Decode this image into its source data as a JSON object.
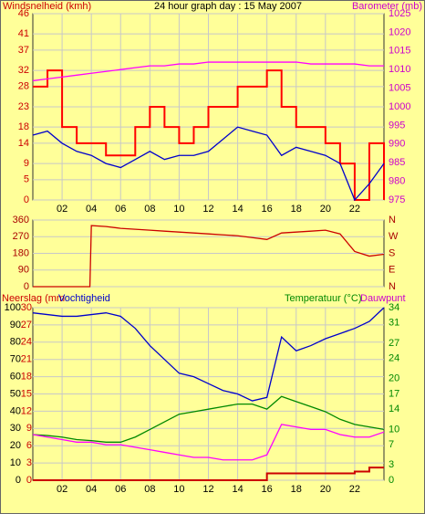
{
  "chart_data": [
    {
      "type": "line",
      "title": "24 hour graph day : 15 May 2007",
      "ylabel": "Windsnelheid (kmh)",
      "y2label": "Barometer (mb)",
      "ytick_color": "#cc0000",
      "y2tick_color": "#cc00cc",
      "x": [
        0,
        1,
        2,
        3,
        4,
        5,
        6,
        7,
        8,
        9,
        10,
        11,
        12,
        13,
        14,
        15,
        16,
        17,
        18,
        19,
        20,
        21,
        22,
        23,
        24
      ],
      "xlim": [
        0,
        24
      ],
      "xticks": [
        {
          "value": 2,
          "label": "02"
        },
        {
          "value": 4,
          "label": "04"
        },
        {
          "value": 6,
          "label": "06"
        },
        {
          "value": 8,
          "label": "08"
        },
        10,
        12,
        14,
        16,
        18,
        20,
        22
      ],
      "ylim": [
        0,
        46
      ],
      "yticks": [
        0,
        5,
        9,
        14,
        18,
        23,
        28,
        32,
        37,
        41,
        46
      ],
      "y2lim": [
        975,
        1025
      ],
      "y2ticks": [
        975,
        980,
        985,
        990,
        995,
        1000,
        1005,
        1010,
        1015,
        1020,
        1025
      ],
      "series": [
        {
          "color": "#ff0000",
          "step": true,
          "values": [
            28,
            32,
            18,
            14,
            14,
            11,
            11,
            18,
            23,
            18,
            14,
            18,
            23,
            23,
            28,
            28,
            32,
            23,
            18,
            18,
            14,
            9,
            0,
            14,
            0
          ]
        },
        {
          "color": "#0000cc",
          "values": [
            16,
            17,
            14,
            12,
            11,
            9,
            8,
            10,
            12,
            10,
            11,
            11,
            12,
            15,
            18,
            17,
            16,
            11,
            13,
            12,
            11,
            9,
            0,
            4,
            9
          ]
        },
        {
          "color": "#ff00ff",
          "axis": "y2",
          "values": [
            1007,
            1007.5,
            1008,
            1008.5,
            1009,
            1009.5,
            1010,
            1010.5,
            1011,
            1011,
            1011.5,
            1011.5,
            1012,
            1012,
            1012,
            1012,
            1012,
            1012,
            1012,
            1011.5,
            1011.5,
            1011.5,
            1011.5,
            1011,
            1011
          ]
        }
      ]
    },
    {
      "type": "line",
      "ytick_color": "#aa0000",
      "y2tick_color": "#aa0000",
      "x": [
        0,
        3.9,
        4,
        5,
        6,
        7,
        8,
        9,
        10,
        11,
        12,
        13,
        14,
        15,
        16,
        17,
        18,
        19,
        20,
        21,
        22,
        23,
        24
      ],
      "xlim": [
        0,
        24
      ],
      "ylim": [
        0,
        360
      ],
      "yticks": [
        0,
        90,
        180,
        270,
        360
      ],
      "y2lim": [
        0,
        360
      ],
      "y2ticks": [
        {
          "value": 360,
          "label": "N"
        },
        {
          "value": 270,
          "label": "W"
        },
        {
          "value": 180,
          "label": "S"
        },
        {
          "value": 90,
          "label": "E"
        },
        {
          "value": 0,
          "label": "N"
        }
      ],
      "series": [
        {
          "color": "#cc0000",
          "values": [
            0,
            0,
            330,
            325,
            315,
            310,
            305,
            300,
            295,
            290,
            285,
            280,
            275,
            265,
            255,
            290,
            295,
            300,
            305,
            285,
            190,
            165,
            175
          ]
        }
      ]
    },
    {
      "type": "line",
      "ylabel": "Vochtigheid",
      "y3label": "Neerslag (mm",
      "y2label": "Temperatuur (°C)",
      "dewpoint_label": "Dauwpunt",
      "ytick_color": "#000000",
      "y3tick_color": "#cc0000",
      "y2tick_color": "#008800",
      "x": [
        0,
        1,
        2,
        3,
        4,
        5,
        6,
        7,
        8,
        9,
        10,
        11,
        12,
        13,
        14,
        15,
        16,
        17,
        18,
        19,
        20,
        21,
        22,
        23,
        24
      ],
      "xlim": [
        0,
        24
      ],
      "xticks": [
        {
          "value": 2,
          "label": "02"
        },
        {
          "value": 4,
          "label": "04"
        },
        {
          "value": 6,
          "label": "06"
        },
        {
          "value": 8,
          "label": "08"
        },
        10,
        12,
        14,
        16,
        18,
        20,
        22
      ],
      "ylim": [
        0,
        100
      ],
      "yticks": [
        0,
        10,
        20,
        30,
        40,
        50,
        60,
        70,
        80,
        90,
        100
      ],
      "y3lim": [
        0,
        30
      ],
      "y3ticks": [
        0,
        3,
        6,
        9,
        12,
        15,
        18,
        21,
        24,
        27,
        30
      ],
      "y2lim": [
        0,
        34
      ],
      "y2ticks": [
        0,
        3,
        7,
        10,
        14,
        17,
        20,
        24,
        27,
        31,
        34
      ],
      "series": [
        {
          "color": "#0000cc",
          "values": [
            97,
            96,
            95,
            95,
            96,
            97,
            95,
            88,
            78,
            70,
            62,
            60,
            56,
            52,
            50,
            46,
            48,
            83,
            75,
            78,
            82,
            85,
            88,
            92,
            100
          ]
        },
        {
          "color": "#008800",
          "axis": "y2",
          "values": [
            9,
            8.8,
            8.5,
            8,
            7.8,
            7.5,
            7.5,
            8.5,
            10,
            11.5,
            13,
            13.5,
            14,
            14.5,
            15,
            15,
            14,
            16.5,
            15.5,
            14.5,
            13.5,
            12,
            11,
            10.5,
            10
          ]
        },
        {
          "color": "#ff00ff",
          "axis": "y2",
          "values": [
            9,
            8.5,
            8,
            7.5,
            7.5,
            7,
            7,
            6.5,
            6,
            5.5,
            5,
            4.5,
            4.5,
            4,
            4,
            4,
            5,
            11,
            10.5,
            10,
            10,
            9,
            8.5,
            8.5,
            9.5
          ]
        },
        {
          "color": "#cc0000",
          "axis": "y3",
          "step": true,
          "values": [
            0,
            0,
            0,
            0,
            0,
            0,
            0,
            0,
            0,
            0,
            0,
            0,
            0,
            0,
            0,
            0,
            1.2,
            1.2,
            1.2,
            1.2,
            1.2,
            1.2,
            1.5,
            2.2,
            2.2
          ]
        }
      ]
    }
  ]
}
